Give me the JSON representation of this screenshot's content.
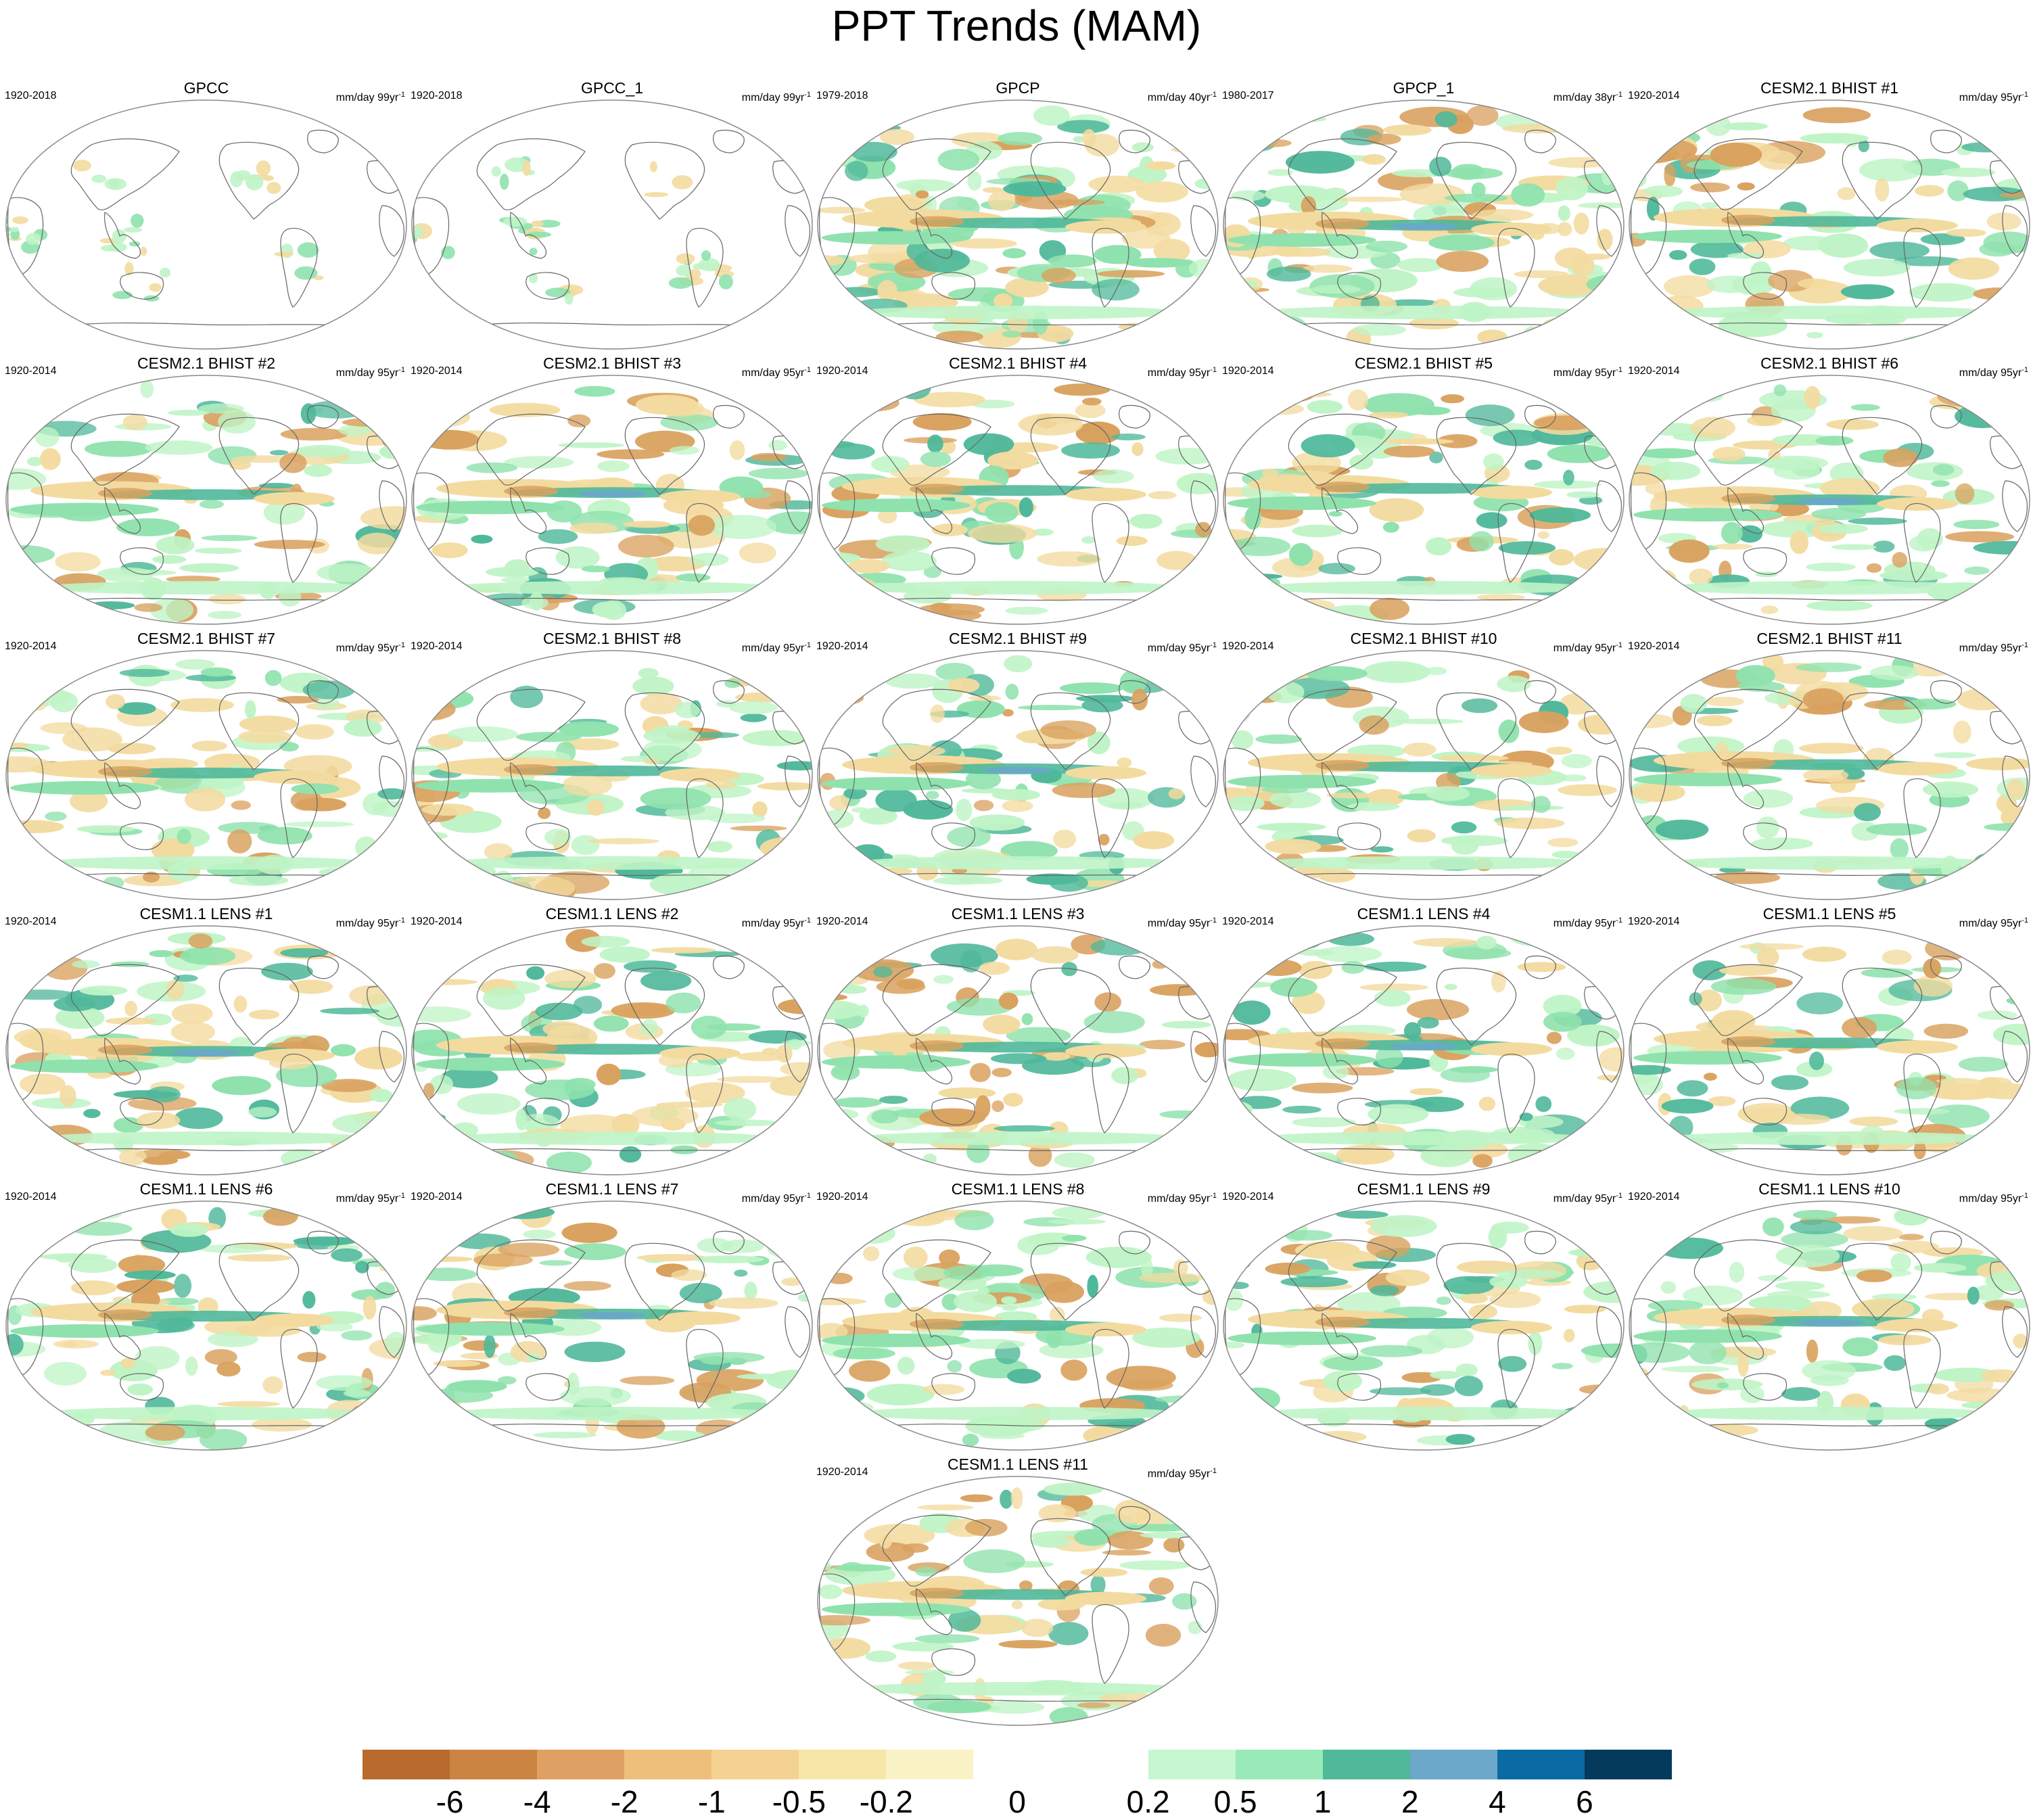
{
  "title": "PPT Trends (MAM)",
  "colors": {
    "ocean": "#ffffff",
    "outline": "#8a8a8a",
    "coast": "#666666",
    "dry_strong": "#d9a15e",
    "dry_weak": "#f3dba0",
    "wet_weak": "#bff4c6",
    "wet_med": "#8fe2ad",
    "wet_strong": "#4fb89a",
    "wet_max": "#6aa8c8"
  },
  "panels": [
    {
      "title": "GPCC",
      "period": "1920-2018",
      "units": "mm/day 99yr",
      "exp": "-1"
    },
    {
      "title": "GPCC_1",
      "period": "1920-2018",
      "units": "mm/day 99yr",
      "exp": "-1"
    },
    {
      "title": "GPCP",
      "period": "1979-2018",
      "units": "mm/day 40yr",
      "exp": "-1"
    },
    {
      "title": "GPCP_1",
      "period": "1980-2017",
      "units": "mm/day 38yr",
      "exp": "-1"
    },
    {
      "title": "CESM2.1 BHIST #1",
      "period": "1920-2014",
      "units": "mm/day 95yr",
      "exp": "-1"
    },
    {
      "title": "CESM2.1 BHIST #2",
      "period": "1920-2014",
      "units": "mm/day 95yr",
      "exp": "-1"
    },
    {
      "title": "CESM2.1 BHIST #3",
      "period": "1920-2014",
      "units": "mm/day 95yr",
      "exp": "-1"
    },
    {
      "title": "CESM2.1 BHIST #4",
      "period": "1920-2014",
      "units": "mm/day 95yr",
      "exp": "-1"
    },
    {
      "title": "CESM2.1 BHIST #5",
      "period": "1920-2014",
      "units": "mm/day 95yr",
      "exp": "-1"
    },
    {
      "title": "CESM2.1 BHIST #6",
      "period": "1920-2014",
      "units": "mm/day 95yr",
      "exp": "-1"
    },
    {
      "title": "CESM2.1 BHIST #7",
      "period": "1920-2014",
      "units": "mm/day 95yr",
      "exp": "-1"
    },
    {
      "title": "CESM2.1 BHIST #8",
      "period": "1920-2014",
      "units": "mm/day 95yr",
      "exp": "-1"
    },
    {
      "title": "CESM2.1 BHIST #9",
      "period": "1920-2014",
      "units": "mm/day 95yr",
      "exp": "-1"
    },
    {
      "title": "CESM2.1 BHIST #10",
      "period": "1920-2014",
      "units": "mm/day 95yr",
      "exp": "-1"
    },
    {
      "title": "CESM2.1 BHIST #11",
      "period": "1920-2014",
      "units": "mm/day 95yr",
      "exp": "-1"
    },
    {
      "title": "CESM1.1 LENS #1",
      "period": "1920-2014",
      "units": "mm/day 95yr",
      "exp": "-1"
    },
    {
      "title": "CESM1.1 LENS #2",
      "period": "1920-2014",
      "units": "mm/day 95yr",
      "exp": "-1"
    },
    {
      "title": "CESM1.1 LENS #3",
      "period": "1920-2014",
      "units": "mm/day 95yr",
      "exp": "-1"
    },
    {
      "title": "CESM1.1 LENS #4",
      "period": "1920-2014",
      "units": "mm/day 95yr",
      "exp": "-1"
    },
    {
      "title": "CESM1.1 LENS #5",
      "period": "1920-2014",
      "units": "mm/day 95yr",
      "exp": "-1"
    },
    {
      "title": "CESM1.1 LENS #6",
      "period": "1920-2014",
      "units": "mm/day 95yr",
      "exp": "-1"
    },
    {
      "title": "CESM1.1 LENS #7",
      "period": "1920-2014",
      "units": "mm/day 95yr",
      "exp": "-1"
    },
    {
      "title": "CESM1.1 LENS #8",
      "period": "1920-2014",
      "units": "mm/day 95yr",
      "exp": "-1"
    },
    {
      "title": "CESM1.1 LENS #9",
      "period": "1920-2014",
      "units": "mm/day 95yr",
      "exp": "-1"
    },
    {
      "title": "CESM1.1 LENS #10",
      "period": "1920-2014",
      "units": "mm/day 95yr",
      "exp": "-1"
    },
    {
      "title": "CESM1.1 LENS #11",
      "period": "1920-2014",
      "units": "mm/day 95yr",
      "exp": "-1"
    }
  ],
  "legend": {
    "colors": [
      "#b86b2c",
      "#cc8443",
      "#dfa163",
      "#eebf7b",
      "#f4d392",
      "#f6e6a7",
      "#faf3c5",
      "#ffffff",
      "#ffffff",
      "#c6f7d0",
      "#99eab8",
      "#4fb99a",
      "#6ba8c9",
      "#0a6aa4",
      "#043a5c"
    ],
    "labels": [
      "-6",
      "-4",
      "-2",
      "-1",
      "-0.5",
      "-0.2",
      "0",
      "0.2",
      "0.5",
      "1",
      "2",
      "4",
      "6"
    ]
  }
}
